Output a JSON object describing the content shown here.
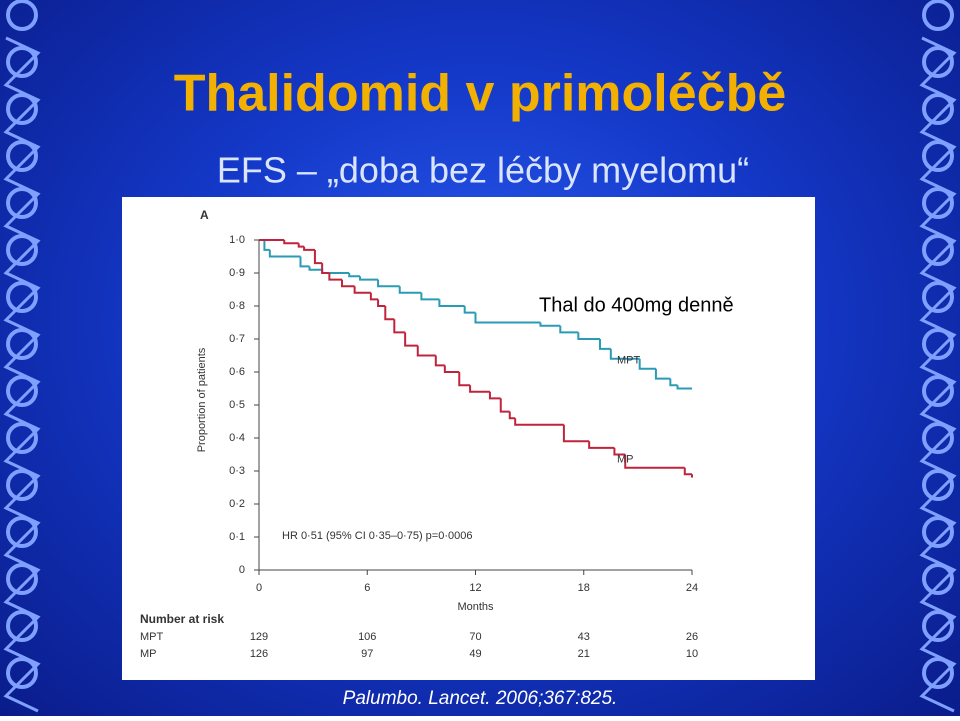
{
  "title": "Thalidomid v primoléčbě",
  "subtitle": "EFS – „doba bez léčby myelomu“",
  "citation": "Palumbo. Lancet. 2006;367:825.",
  "chart_data": {
    "type": "step",
    "panel_label": "A",
    "annotation": "Thal do 400mg denně",
    "hr_text": "HR 0·51 (95% CI 0·35–0·75) p=0·0006",
    "x_label": "Months",
    "y_label": "Proportion of patients",
    "xlim": [
      0,
      24
    ],
    "xticks": [
      0,
      6,
      12,
      18,
      24
    ],
    "ylim": [
      0,
      1
    ],
    "yticks": [
      0,
      {
        "value": 0.1,
        "label": "0·1"
      },
      {
        "value": 0.2,
        "label": "0·2"
      },
      {
        "value": 0.3,
        "label": "0·3"
      },
      {
        "value": 0.4,
        "label": "0·4"
      },
      {
        "value": 0.5,
        "label": "0·5"
      },
      {
        "value": 0.6,
        "label": "0·6"
      },
      {
        "value": 0.7,
        "label": "0·7"
      },
      {
        "value": 0.8,
        "label": "0·8"
      },
      {
        "value": 0.9,
        "label": "0·9"
      },
      {
        "value": 1.0,
        "label": "1·0"
      }
    ],
    "series": [
      {
        "name": "MPT",
        "color": "#2a9bb5",
        "x": [
          0,
          0.3,
          0.6,
          2.3,
          2.8,
          3.5,
          5,
          5.6,
          6.6,
          7.8,
          9,
          10,
          11.4,
          12,
          15.6,
          16.7,
          17.7,
          18.9,
          19.5,
          21.1,
          22,
          22.8,
          23.2,
          24
        ],
        "values": [
          1.0,
          0.97,
          0.95,
          0.92,
          0.91,
          0.9,
          0.89,
          0.88,
          0.86,
          0.84,
          0.82,
          0.8,
          0.78,
          0.75,
          0.74,
          0.72,
          0.7,
          0.67,
          0.64,
          0.61,
          0.58,
          0.56,
          0.55,
          0.55
        ]
      },
      {
        "name": "MP",
        "color": "#c0243c",
        "x": [
          0,
          1.4,
          2.2,
          2.5,
          3.1,
          3.5,
          3.9,
          4.6,
          5.3,
          6.2,
          6.6,
          7,
          7.5,
          8.1,
          8.8,
          9.8,
          10.3,
          11.1,
          11.7,
          12.8,
          13.4,
          13.9,
          14.2,
          16.9,
          18.3,
          19.7,
          20.3,
          23.6,
          24
        ],
        "values": [
          1.0,
          0.99,
          0.98,
          0.97,
          0.93,
          0.9,
          0.88,
          0.86,
          0.84,
          0.82,
          0.8,
          0.76,
          0.72,
          0.68,
          0.65,
          0.62,
          0.6,
          0.56,
          0.54,
          0.52,
          0.48,
          0.46,
          0.44,
          0.39,
          0.37,
          0.35,
          0.31,
          0.29,
          0.28
        ]
      }
    ],
    "risk_table": {
      "title": "Number at risk",
      "rows": [
        {
          "label": "MPT",
          "values": [
            129,
            106,
            70,
            43,
            26
          ]
        },
        {
          "label": "MP",
          "values": [
            126,
            97,
            49,
            21,
            10
          ]
        }
      ]
    }
  }
}
